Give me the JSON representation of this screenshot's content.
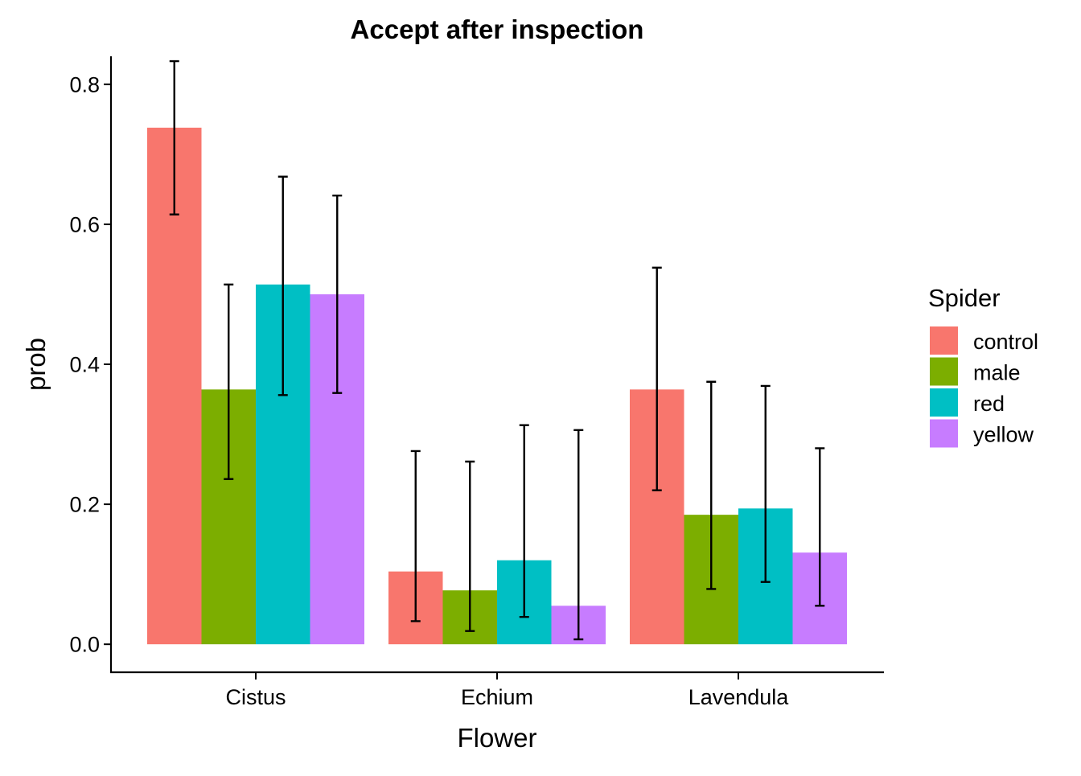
{
  "chart_data": {
    "type": "bar",
    "title": "Accept after inspection",
    "xlabel": "Flower",
    "ylabel": "prob",
    "categories": [
      "Cistus",
      "Echium",
      "Lavendula"
    ],
    "ylim": [
      -0.04,
      0.84
    ],
    "yticks": [
      {
        "value": 0.0,
        "label": "0.0"
      },
      {
        "value": 0.2,
        "label": "0.2"
      },
      {
        "value": 0.4,
        "label": "0.4"
      },
      {
        "value": 0.6,
        "label": "0.6"
      },
      {
        "value": 0.8,
        "label": "0.8"
      }
    ],
    "grid": false,
    "legend": {
      "title": "Spider",
      "position": "right"
    },
    "series": [
      {
        "name": "control",
        "color": "#F8766D",
        "values": [
          0.738,
          0.104,
          0.364
        ],
        "lower": [
          0.614,
          0.033,
          0.22
        ],
        "upper": [
          0.833,
          0.276,
          0.538
        ]
      },
      {
        "name": "male",
        "color": "#7CAE00",
        "values": [
          0.364,
          0.077,
          0.185
        ],
        "lower": [
          0.236,
          0.019,
          0.079
        ],
        "upper": [
          0.514,
          0.261,
          0.375
        ]
      },
      {
        "name": "red",
        "color": "#00BFC4",
        "values": [
          0.514,
          0.12,
          0.194
        ],
        "lower": [
          0.356,
          0.039,
          0.089
        ],
        "upper": [
          0.668,
          0.313,
          0.369
        ]
      },
      {
        "name": "yellow",
        "color": "#C77CFF",
        "values": [
          0.5,
          0.055,
          0.131
        ],
        "lower": [
          0.359,
          0.007,
          0.055
        ],
        "upper": [
          0.641,
          0.306,
          0.28
        ]
      }
    ]
  }
}
